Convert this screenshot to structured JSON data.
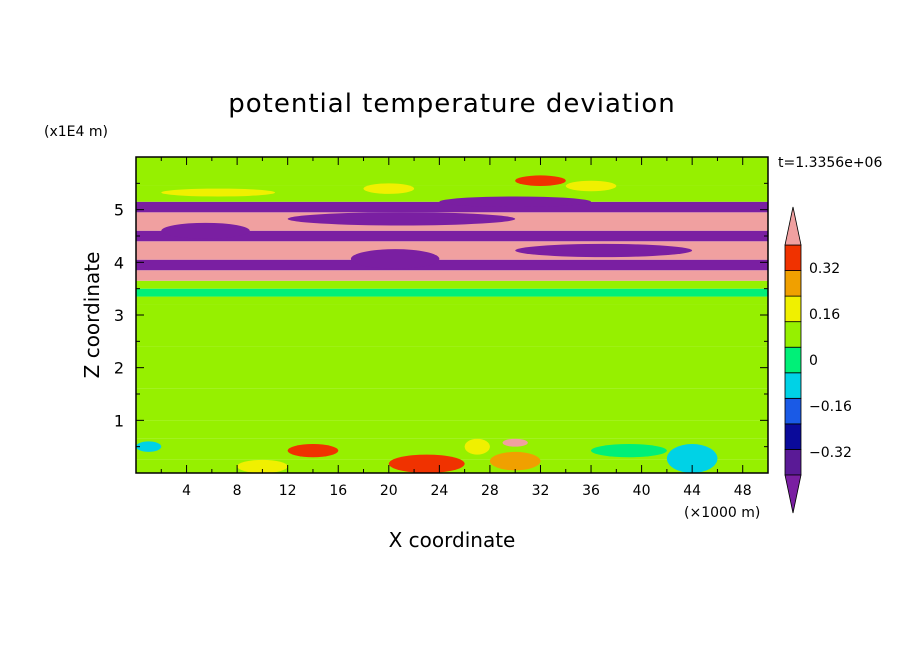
{
  "chart_data": {
    "type": "heatmap",
    "title": "potential temperature deviation",
    "time_label": "t=1.3356e+06",
    "xlabel": "X coordinate",
    "ylabel": "Z coordinate",
    "x_unit": "(×1000 m)",
    "y_unit": "(x1E4 m)",
    "xlim": [
      0,
      50
    ],
    "ylim": [
      0,
      6
    ],
    "x_ticks": [
      "4",
      "8",
      "12",
      "16",
      "20",
      "24",
      "28",
      "32",
      "36",
      "40",
      "44",
      "48"
    ],
    "y_ticks": [
      "1",
      "2",
      "3",
      "4",
      "5"
    ],
    "colorbar": {
      "levels": [
        -0.4,
        -0.32,
        -0.24,
        -0.16,
        -0.08,
        0,
        0.08,
        0.16,
        0.24,
        0.32,
        0.4
      ],
      "labels": [
        "0.32",
        "0.16",
        "0",
        "−0.16",
        "−0.32"
      ],
      "label_values": [
        0.32,
        0.16,
        0,
        -0.16,
        -0.32
      ],
      "colors_bottom_to_top": [
        "#7a1fa2",
        "#5a1a96",
        "#0a0a9a",
        "#1a5ae6",
        "#00d2e6",
        "#00f078",
        "#96f000",
        "#f0f000",
        "#f0a000",
        "#f03200",
        "#f0a0a0"
      ],
      "extend": "both"
    },
    "bands": [
      {
        "z": [
          0.0,
          0.25
        ],
        "value": 0.03
      },
      {
        "z": [
          0.25,
          0.65
        ],
        "value": 0.02
      },
      {
        "z": [
          0.65,
          1.0
        ],
        "value": 0.04
      },
      {
        "z": [
          1.0,
          1.6
        ],
        "value": 0.03
      },
      {
        "z": [
          1.6,
          2.4
        ],
        "value": 0.05
      },
      {
        "z": [
          2.4,
          3.2
        ],
        "value": 0.04
      },
      {
        "z": [
          3.2,
          3.35
        ],
        "value": 0.05
      },
      {
        "z": [
          3.35,
          3.5
        ],
        "value": -0.02
      },
      {
        "z": [
          3.5,
          3.65
        ],
        "value": 0.03
      },
      {
        "z": [
          3.65,
          3.85
        ],
        "value": 0.45
      },
      {
        "z": [
          3.85,
          4.05
        ],
        "value": -0.45
      },
      {
        "z": [
          4.05,
          4.4
        ],
        "value": 0.45
      },
      {
        "z": [
          4.4,
          4.6
        ],
        "value": -0.45
      },
      {
        "z": [
          4.6,
          4.95
        ],
        "value": 0.45
      },
      {
        "z": [
          4.95,
          5.15
        ],
        "value": -0.45
      },
      {
        "z": [
          5.15,
          5.45
        ],
        "value": 0.03
      },
      {
        "z": [
          5.45,
          6.0
        ],
        "value": 0.02
      }
    ],
    "features": [
      {
        "x": [
          2,
          9
        ],
        "z": [
          4.45,
          4.75
        ],
        "value": -0.45
      },
      {
        "x": [
          12,
          30
        ],
        "z": [
          4.7,
          4.95
        ],
        "value": -0.45
      },
      {
        "x": [
          17,
          24
        ],
        "z": [
          3.88,
          4.25
        ],
        "value": -0.45
      },
      {
        "x": [
          30,
          44
        ],
        "z": [
          4.1,
          4.35
        ],
        "value": -0.45
      },
      {
        "x": [
          24,
          36
        ],
        "z": [
          5.05,
          5.25
        ],
        "value": -0.45
      },
      {
        "x": [
          2,
          11
        ],
        "z": [
          5.25,
          5.4
        ],
        "value": 0.12
      },
      {
        "x": [
          20,
          26
        ],
        "z": [
          0.0,
          0.35
        ],
        "value": 0.3
      },
      {
        "x": [
          28,
          32
        ],
        "z": [
          0.05,
          0.4
        ],
        "value": 0.2
      },
      {
        "x": [
          12,
          16
        ],
        "z": [
          0.3,
          0.55
        ],
        "value": 0.28
      },
      {
        "x": [
          8,
          12
        ],
        "z": [
          0.0,
          0.25
        ],
        "value": 0.15
      },
      {
        "x": [
          42,
          46
        ],
        "z": [
          0.0,
          0.55
        ],
        "value": -0.16
      },
      {
        "x": [
          0,
          2
        ],
        "z": [
          0.4,
          0.6
        ],
        "value": -0.16
      },
      {
        "x": [
          36,
          42
        ],
        "z": [
          0.3,
          0.55
        ],
        "value": -0.05
      },
      {
        "x": [
          26,
          28
        ],
        "z": [
          0.35,
          0.65
        ],
        "value": 0.1
      },
      {
        "x": [
          29,
          31
        ],
        "z": [
          0.5,
          0.65
        ],
        "value": 0.45
      },
      {
        "x": [
          34,
          38
        ],
        "z": [
          5.35,
          5.55
        ],
        "value": 0.15
      },
      {
        "x": [
          18,
          22
        ],
        "z": [
          5.3,
          5.5
        ],
        "value": 0.12
      },
      {
        "x": [
          30,
          34
        ],
        "z": [
          5.45,
          5.65
        ],
        "value": 0.3
      }
    ]
  }
}
